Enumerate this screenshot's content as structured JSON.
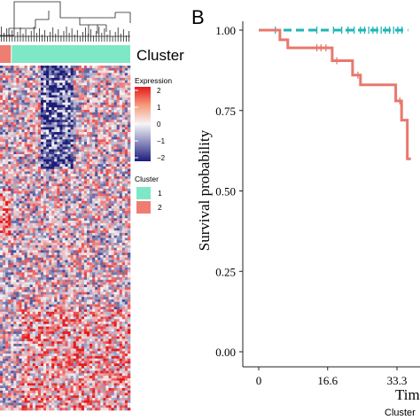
{
  "colors": {
    "cluster_1": "#7ee8c6",
    "cluster_2": "#ee7e72",
    "km_cluster_1": "#1fb5b5",
    "km_cluster_2": "#e8786d",
    "expr_high": "#e31a1c",
    "expr_mid": "#f5f5f5",
    "expr_low": "#1c1c78"
  },
  "heatmap": {
    "annotation_label": "Cluster",
    "legend_expression": {
      "title": "Expression",
      "ticks": [
        "2",
        "1",
        "0",
        "−1",
        "−2"
      ]
    },
    "legend_cluster": {
      "title": "Cluster",
      "items": [
        "1",
        "2"
      ]
    }
  },
  "km": {
    "panel_label": "B",
    "ylabel": "Survival probability",
    "xlabel_visible": "Tim",
    "legend_title_visible": "Cluster"
  },
  "chart_data": [
    {
      "type": "heatmap",
      "title": "",
      "color_scale": {
        "min": -2,
        "max": 2
      },
      "annotation": "Cluster",
      "clusters": [
        "1",
        "2"
      ]
    },
    {
      "type": "line",
      "title": "",
      "xlabel": "Time",
      "ylabel": "Survival probability",
      "xticks": [
        "0",
        "16.6",
        "33.3"
      ],
      "yticks": [
        "0.00",
        "0.25",
        "0.50",
        "0.75",
        "1.00"
      ],
      "xlim": [
        0,
        36
      ],
      "ylim": [
        0,
        1
      ],
      "series": [
        {
          "name": "1",
          "style": "dashed",
          "steps": [
            [
              0,
              1.0
            ],
            [
              36,
              1.0
            ]
          ],
          "censor_times": [
            4,
            14,
            18,
            20,
            21.5,
            23,
            24.5,
            25.5,
            26.5,
            27.5,
            28.5,
            29.5,
            30.5,
            31.5,
            32.5,
            33.5,
            34.5
          ]
        },
        {
          "name": "2",
          "style": "solid",
          "steps": [
            [
              0,
              1.0
            ],
            [
              5.1,
              0.97
            ],
            [
              7.0,
              0.945
            ],
            [
              17.7,
              0.905
            ],
            [
              22.6,
              0.86
            ],
            [
              24.5,
              0.83
            ],
            [
              33.0,
              0.78
            ],
            [
              34.4,
              0.72
            ],
            [
              35.8,
              0.6
            ]
          ],
          "censor_times": [
            14,
            15,
            16.2,
            18.8,
            23.9,
            34
          ]
        }
      ]
    }
  ]
}
